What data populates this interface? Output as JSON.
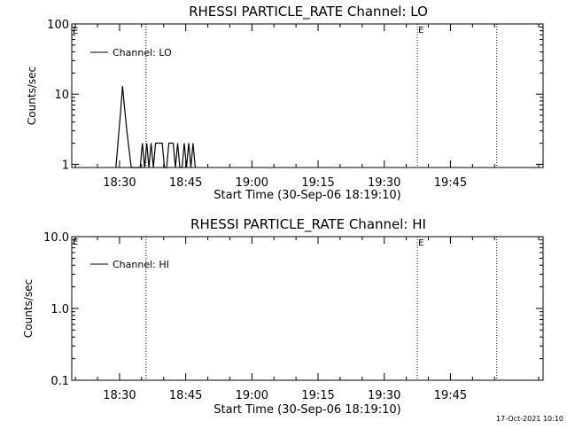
{
  "chart_data": [
    {
      "type": "line",
      "title": "RHESSI PARTICLE_RATE Channel: LO",
      "xlabel": "Start Time (30-Sep-06 18:19:10)",
      "ylabel": "Counts/sec",
      "yscale": "log",
      "ylim": [
        0.9,
        100
      ],
      "xlim": [
        "18:19:10",
        "20:06:00"
      ],
      "yticks": [
        {
          "v": 100,
          "label": "100"
        },
        {
          "v": 10,
          "label": "10"
        },
        {
          "v": 1,
          "label": "1"
        }
      ],
      "xticks": [
        "18:30",
        "18:45",
        "19:00",
        "19:15",
        "19:30",
        "19:45"
      ],
      "legend": {
        "label": "Channel: LO",
        "position": "top-left"
      },
      "markers": [
        {
          "time": "18:36:00",
          "label": ""
        },
        {
          "time": "19:37:30",
          "label": "E"
        },
        {
          "time": "19:55:30",
          "label": ""
        }
      ],
      "corner_label": "E",
      "series": [
        {
          "name": "Channel: LO",
          "x": [
            "18:29:10",
            "18:30:10",
            "18:30:40",
            "18:31:10",
            "18:31:40",
            "18:32:10",
            "18:32:40",
            "18:33:10",
            "18:33:40",
            "18:34:10",
            "18:34:40",
            "18:35:10",
            "18:35:40",
            "18:36:10",
            "18:36:40",
            "18:37:10",
            "18:37:40",
            "18:38:10",
            "18:38:40",
            "18:39:10",
            "18:39:40",
            "18:40:10",
            "18:40:40",
            "18:41:10",
            "18:41:40",
            "18:42:10",
            "18:42:40",
            "18:43:10",
            "18:43:40",
            "18:44:10",
            "18:44:40",
            "18:45:10",
            "18:45:40",
            "18:46:10",
            "18:46:40",
            "18:47:10"
          ],
          "y": [
            0.9,
            5,
            13,
            6,
            3,
            1.6,
            0.9,
            0.9,
            0.9,
            0.9,
            0.9,
            2,
            0.9,
            2,
            0.9,
            2,
            0.9,
            2,
            2,
            2,
            2,
            0.9,
            0.9,
            2,
            2,
            2,
            0.9,
            2,
            0.9,
            0.9,
            2,
            0.9,
            2,
            0.9,
            2,
            0.9
          ]
        }
      ]
    },
    {
      "type": "line",
      "title": "RHESSI PARTICLE_RATE Channel: HI",
      "xlabel": "Start Time (30-Sep-06 18:19:10)",
      "ylabel": "Counts/sec",
      "yscale": "log",
      "ylim": [
        0.1,
        10
      ],
      "xlim": [
        "18:19:10",
        "20:06:00"
      ],
      "yticks": [
        {
          "v": 10,
          "label": "10.0"
        },
        {
          "v": 1,
          "label": "1.0"
        },
        {
          "v": 0.1,
          "label": "0.1"
        }
      ],
      "xticks": [
        "18:30",
        "18:45",
        "19:00",
        "19:15",
        "19:30",
        "19:45"
      ],
      "legend": {
        "label": "Channel: HI",
        "position": "top-left"
      },
      "markers": [
        {
          "time": "18:36:00",
          "label": ""
        },
        {
          "time": "19:37:30",
          "label": "E"
        },
        {
          "time": "19:55:30",
          "label": ""
        }
      ],
      "corner_label": "E",
      "series": [
        {
          "name": "Channel: HI",
          "x": [],
          "y": []
        }
      ]
    }
  ],
  "footer": {
    "date": "17-Oct-2021 10:10"
  }
}
